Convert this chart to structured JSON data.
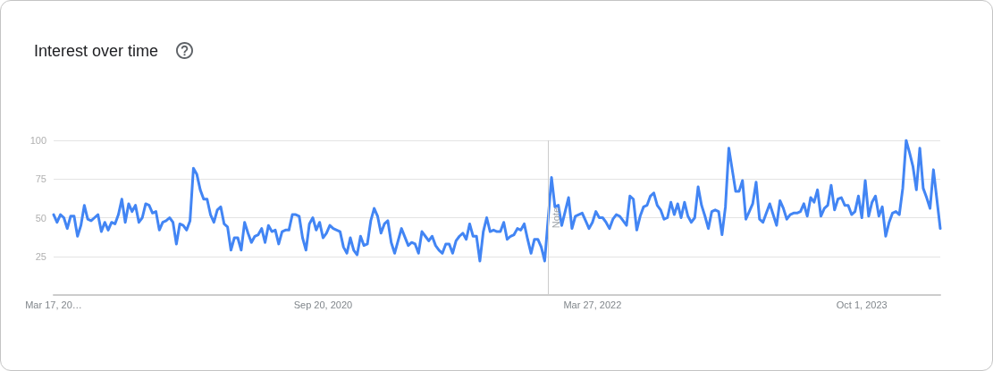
{
  "chart_data": {
    "type": "line",
    "title": "Interest over time",
    "x": [
      "2019-03-17",
      "2019-03-24",
      "2019-03-31",
      "2019-04-07",
      "2019-04-14",
      "2019-04-21",
      "2019-04-28",
      "2019-05-05",
      "2019-05-12",
      "2019-05-19",
      "2019-05-26",
      "2019-06-02",
      "2019-06-09",
      "2019-06-16",
      "2019-06-23",
      "2019-06-30",
      "2019-07-07",
      "2019-07-14",
      "2019-07-21",
      "2019-07-28",
      "2019-08-04",
      "2019-08-11",
      "2019-08-18",
      "2019-08-25",
      "2019-09-01",
      "2019-09-08",
      "2019-09-15",
      "2019-09-22",
      "2019-09-29",
      "2019-10-06",
      "2019-10-13",
      "2019-10-20",
      "2019-10-27",
      "2019-11-03",
      "2019-11-10",
      "2019-11-17",
      "2019-11-24",
      "2019-12-01",
      "2019-12-08",
      "2019-12-15",
      "2019-12-22",
      "2019-12-29",
      "2020-01-05",
      "2020-01-12",
      "2020-01-19",
      "2020-01-26",
      "2020-02-02",
      "2020-02-09",
      "2020-02-16",
      "2020-02-23",
      "2020-03-01",
      "2020-03-08",
      "2020-03-15",
      "2020-03-22",
      "2020-03-29",
      "2020-04-05",
      "2020-04-12",
      "2020-04-19",
      "2020-04-26",
      "2020-05-03",
      "2020-05-10",
      "2020-05-17",
      "2020-05-24",
      "2020-05-31",
      "2020-06-07",
      "2020-06-14",
      "2020-06-21",
      "2020-06-28",
      "2020-07-05",
      "2020-07-12",
      "2020-07-19",
      "2020-07-26",
      "2020-08-02",
      "2020-08-09",
      "2020-08-16",
      "2020-08-23",
      "2020-08-30",
      "2020-09-06",
      "2020-09-13",
      "2020-09-20",
      "2020-09-27",
      "2020-10-04",
      "2020-10-11",
      "2020-10-18",
      "2020-10-25",
      "2020-11-01",
      "2020-11-08",
      "2020-11-15",
      "2020-11-22",
      "2020-11-29",
      "2020-12-06",
      "2020-12-13",
      "2020-12-20",
      "2020-12-27",
      "2021-01-03",
      "2021-01-10",
      "2021-01-17",
      "2021-01-24",
      "2021-01-31",
      "2021-02-07",
      "2021-02-14",
      "2021-02-28",
      "2021-03-14",
      "2021-03-21",
      "2021-03-28",
      "2021-04-04",
      "2021-04-11",
      "2021-04-18",
      "2021-04-25",
      "2021-05-02",
      "2021-05-09",
      "2021-05-16",
      "2021-05-23",
      "2021-05-30",
      "2021-06-06",
      "2021-06-13",
      "2021-06-20",
      "2021-06-27",
      "2021-07-04",
      "2021-07-11",
      "2021-07-18",
      "2021-07-25",
      "2021-08-01",
      "2021-08-08",
      "2021-08-15",
      "2021-08-22",
      "2021-08-29",
      "2021-09-05",
      "2021-09-12",
      "2021-09-19",
      "2021-09-26",
      "2021-10-03",
      "2021-10-10",
      "2021-10-17",
      "2021-10-24",
      "2021-10-31",
      "2021-11-07",
      "2021-11-14",
      "2021-11-21",
      "2021-11-28",
      "2021-12-05",
      "2021-12-12",
      "2021-12-19",
      "2022-01-02",
      "2022-01-09",
      "2022-01-16",
      "2022-01-23",
      "2022-01-30",
      "2022-02-06",
      "2022-02-13",
      "2022-02-20",
      "2022-02-27",
      "2022-03-06",
      "2022-03-13",
      "2022-03-20",
      "2022-03-27",
      "2022-04-03",
      "2022-04-10",
      "2022-04-17",
      "2022-04-24",
      "2022-05-01",
      "2022-05-08",
      "2022-05-15",
      "2022-05-22",
      "2022-05-29",
      "2022-06-05",
      "2022-06-12",
      "2022-06-19",
      "2022-06-26",
      "2022-07-03",
      "2022-07-10",
      "2022-07-17",
      "2022-07-24",
      "2022-07-31",
      "2022-08-07",
      "2022-08-14",
      "2022-08-21",
      "2022-08-28",
      "2022-09-04",
      "2022-09-11",
      "2022-09-18",
      "2022-09-25",
      "2022-10-02",
      "2022-10-09",
      "2022-10-16",
      "2022-10-23",
      "2022-10-30",
      "2022-11-06",
      "2022-11-13",
      "2022-11-20",
      "2022-11-27",
      "2022-12-04",
      "2022-12-11",
      "2022-12-18",
      "2022-12-25",
      "2023-01-01",
      "2023-01-08",
      "2023-01-15",
      "2023-01-22",
      "2023-01-29",
      "2023-02-05",
      "2023-02-12",
      "2023-02-19",
      "2023-02-26",
      "2023-03-05",
      "2023-03-12",
      "2023-03-19",
      "2023-03-26",
      "2023-04-02",
      "2023-04-09",
      "2023-04-16",
      "2023-04-23",
      "2023-04-30",
      "2023-05-07",
      "2023-05-14",
      "2023-05-21",
      "2023-05-28",
      "2023-06-04",
      "2023-06-11",
      "2023-06-18",
      "2023-06-25",
      "2023-07-02",
      "2023-07-09",
      "2023-07-16",
      "2023-07-23",
      "2023-07-30",
      "2023-08-06",
      "2023-08-13",
      "2023-08-20",
      "2023-08-27",
      "2023-09-03",
      "2023-09-10",
      "2023-09-17",
      "2023-09-24",
      "2023-10-01",
      "2023-10-08",
      "2023-10-15",
      "2023-10-22",
      "2023-10-29",
      "2023-11-05",
      "2023-11-12",
      "2023-11-19",
      "2023-11-26",
      "2023-12-03",
      "2023-12-10",
      "2023-12-17",
      "2023-12-24",
      "2023-12-31",
      "2024-01-07",
      "2024-01-14",
      "2024-01-21",
      "2024-01-28",
      "2024-02-04",
      "2024-02-11",
      "2024-02-18",
      "2024-02-25",
      "2024-03-03",
      "2024-03-10"
    ],
    "values": [
      52,
      47,
      52,
      50,
      43,
      51,
      51,
      38,
      45,
      58,
      49,
      48,
      50,
      52,
      41,
      47,
      42,
      47,
      46,
      52,
      62,
      47,
      59,
      54,
      58,
      47,
      50,
      59,
      58,
      53,
      54,
      42,
      47,
      48,
      50,
      47,
      33,
      46,
      45,
      42,
      48,
      82,
      78,
      68,
      62,
      62,
      52,
      47,
      55,
      57,
      46,
      44,
      29,
      37,
      37,
      29,
      47,
      40,
      34,
      38,
      39,
      43,
      34,
      45,
      41,
      42,
      33,
      41,
      42,
      42,
      52,
      52,
      51,
      37,
      29,
      46,
      50,
      42,
      47,
      37,
      40,
      45,
      43,
      42,
      41,
      31,
      27,
      37,
      29,
      26,
      38,
      32,
      33,
      48,
      56,
      51,
      40,
      46,
      48,
      34,
      27,
      43,
      32,
      34,
      33,
      27,
      41,
      38,
      35,
      38,
      32,
      29,
      27,
      33,
      33,
      27,
      35,
      38,
      40,
      36,
      46,
      38,
      38,
      22,
      41,
      50,
      41,
      42,
      41,
      41,
      47,
      36,
      38,
      39,
      43,
      42,
      46,
      36,
      27,
      36,
      36,
      31,
      22,
      76,
      57,
      58,
      45,
      54,
      63,
      43,
      51,
      52,
      53,
      48,
      43,
      47,
      54,
      50,
      50,
      47,
      43,
      49,
      52,
      51,
      48,
      45,
      64,
      62,
      42,
      51,
      57,
      58,
      64,
      66,
      58,
      55,
      49,
      50,
      60,
      52,
      59,
      50,
      60,
      51,
      47,
      50,
      70,
      58,
      51,
      43,
      54,
      55,
      54,
      39,
      57,
      95,
      81,
      67,
      67,
      74,
      49,
      54,
      59,
      73,
      49,
      47,
      53,
      59,
      52,
      45,
      61,
      56,
      49,
      52,
      53,
      53,
      54,
      59,
      51,
      63,
      60,
      68,
      51,
      56,
      58,
      71,
      55,
      62,
      63,
      58,
      58,
      52,
      54,
      64,
      50,
      74,
      51,
      60,
      64,
      51,
      57,
      38,
      47,
      53,
      54,
      52,
      69,
      100,
      92,
      83,
      68,
      95,
      69,
      63,
      56,
      81,
      62,
      43
    ],
    "color": "#4285f4",
    "line_style": "solid",
    "xlim": [
      "2019-03-17",
      "2024-03-10"
    ],
    "xticks": [
      {
        "value": "2019-03-17",
        "label": "Mar 17, 20…"
      },
      {
        "value": "2020-09-20",
        "label": "Sep 20, 2020"
      },
      {
        "value": "2022-03-27",
        "label": "Mar 27, 2022"
      },
      {
        "value": "2023-10-01",
        "label": "Oct 1, 2023"
      }
    ],
    "ylim": [
      0,
      100
    ],
    "yticks": [
      25,
      50,
      75,
      100
    ],
    "grid": "y",
    "ref_lines": [
      {
        "axis": "x",
        "value": "2021-12-26",
        "label": "Note",
        "color": "#cccccc"
      }
    ]
  }
}
